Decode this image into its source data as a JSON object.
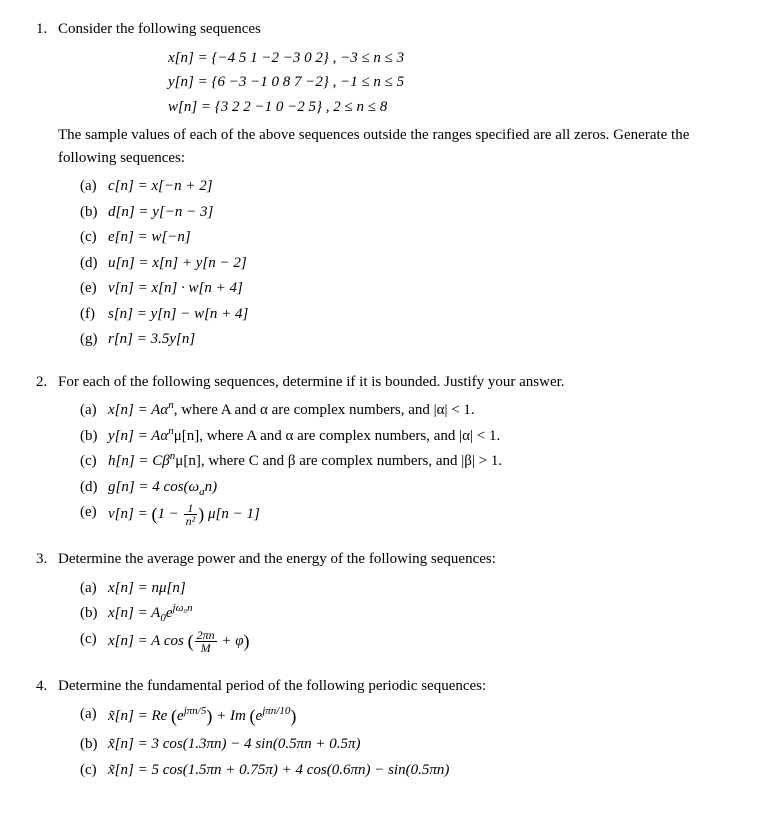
{
  "p1": {
    "num": "1.",
    "intro": "Consider the following sequences",
    "seq1": "x[n] = {−4   5   1   −2   −3   0   2} , −3 ≤ n ≤ 3",
    "seq2": "y[n] = {6   −3   −1   0   8   7   −2} , −1 ≤ n ≤ 5",
    "seq3": "w[n] = {3   2   2   −1   0   −2   5} , 2 ≤ n ≤ 8",
    "mid": "The sample values of each of the above sequences outside the ranges specified are all zeros. Generate the following sequences:",
    "a": {
      "lbl": "(a)",
      "txt": "c[n] = x[−n + 2]"
    },
    "b": {
      "lbl": "(b)",
      "txt": "d[n] = y[−n − 3]"
    },
    "c": {
      "lbl": "(c)",
      "txt": "e[n] = w[−n]"
    },
    "d": {
      "lbl": "(d)",
      "txt": "u[n] = x[n] + y[n − 2]"
    },
    "e": {
      "lbl": "(e)",
      "txt": "v[n] = x[n] · w[n + 4]"
    },
    "f": {
      "lbl": "(f)",
      "txt": "s[n] = y[n] − w[n + 4]"
    },
    "g": {
      "lbl": "(g)",
      "txt": "r[n] = 3.5y[n]"
    }
  },
  "p2": {
    "num": "2.",
    "intro": "For each of the following sequences, determine if it is bounded. Justify your answer.",
    "a": {
      "lbl": "(a)",
      "pre": "x[n] = Aα",
      "sup": "n",
      "post": ", where A and α are complex numbers, and |α| < 1."
    },
    "b": {
      "lbl": "(b)",
      "pre": "y[n] = Aα",
      "sup": "n",
      "post": "μ[n], where A and α are complex numbers, and |α| < 1."
    },
    "c": {
      "lbl": "(c)",
      "pre": "h[n] = Cβ",
      "sup": "n",
      "post": "μ[n], where C and β are complex numbers, and |β| > 1."
    },
    "d": {
      "lbl": "(d)",
      "txt": "g[n] = 4 cos(ω",
      "sub": "a",
      "post": "n)"
    },
    "e": {
      "lbl": "(e)",
      "pre": "v[n] = ",
      "paren_open": "(",
      "one": "1 − ",
      "frac_top": "1",
      "frac_bot": "n²",
      "paren_close": ")",
      "post": " μ[n − 1]"
    }
  },
  "p3": {
    "num": "3.",
    "intro": "Determine the average power and the energy of the following sequences:",
    "a": {
      "lbl": "(a)",
      "txt": "x[n] = nμ[n]"
    },
    "b": {
      "lbl": "(b)",
      "pre": "x[n] = A",
      "sub": "0",
      "mid": "e",
      "sup": "jω₀n"
    },
    "c": {
      "lbl": "(c)",
      "pre": "x[n] = A cos ",
      "paren_open": "(",
      "frac_top": "2πn",
      "frac_bot": "M",
      "post": " + φ",
      "paren_close": ")"
    }
  },
  "p4": {
    "num": "4.",
    "intro": "Determine the fundamental period of the following periodic sequences:",
    "a": {
      "lbl": "(a)",
      "pre": "x̃[n] = Re ",
      "paren1o": "(",
      "e1": "e",
      "sup1": "jπn/5",
      "paren1c": ")",
      "plus": " + Im ",
      "paren2o": "(",
      "e2": "e",
      "sup2": "jπn/10",
      "paren2c": ")"
    },
    "b": {
      "lbl": "(b)",
      "txt": "x̃[n] = 3 cos(1.3πn) − 4 sin(0.5πn + 0.5π)"
    },
    "c": {
      "lbl": "(c)",
      "txt": "x̃[n] = 5 cos(1.5πn + 0.75π) + 4 cos(0.6πn) − sin(0.5πn)"
    }
  }
}
